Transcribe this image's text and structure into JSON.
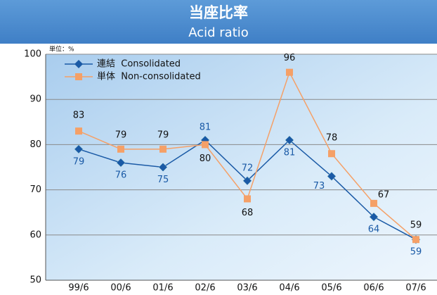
{
  "chart_data": {
    "type": "line",
    "title": "当座比率",
    "subtitle": "Acid ratio",
    "unit_label": "単位：%",
    "categories": [
      "99/6",
      "00/6",
      "01/6",
      "02/6",
      "03/6",
      "04/6",
      "05/6",
      "06/6",
      "07/6"
    ],
    "series": [
      {
        "name": "連結  Consolidated",
        "color": "#1a5aa6",
        "marker": "diamond",
        "values": [
          79,
          76,
          75,
          81,
          72,
          81,
          73,
          64,
          59
        ]
      },
      {
        "name": "単体  Non-consolidated",
        "color": "#f5a067",
        "marker": "square",
        "values": [
          83,
          79,
          79,
          80,
          68,
          96,
          78,
          67,
          59
        ]
      }
    ],
    "ylim": [
      50,
      100
    ],
    "yticks": [
      50,
      60,
      70,
      80,
      90,
      100
    ],
    "grid": true,
    "legend": "top-left"
  }
}
